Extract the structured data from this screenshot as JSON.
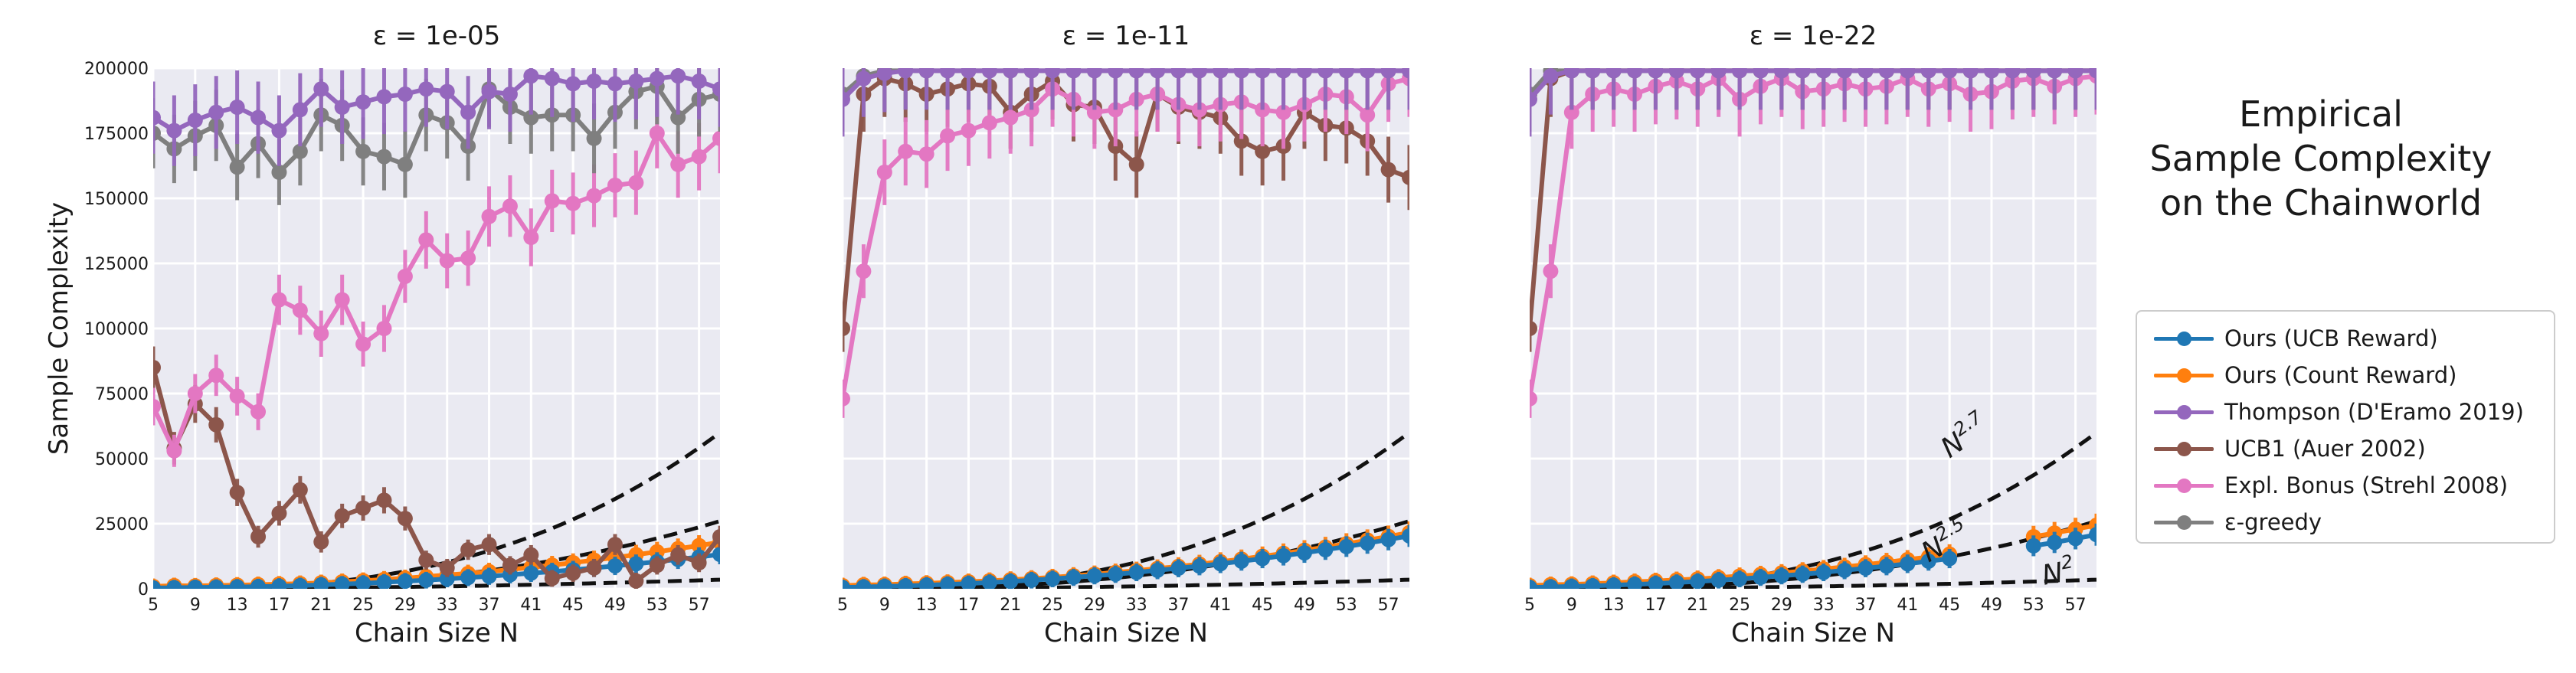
{
  "side_title": [
    "Empirical",
    "Sample Complexity",
    "on the Chainworld"
  ],
  "y_axis_label": "Sample Complexity",
  "legend": [
    {
      "label": "Ours (UCB Reward)",
      "color": "#1f77b4"
    },
    {
      "label": "Ours (Count Reward)",
      "color": "#ff7f0e"
    },
    {
      "label": "Thompson (D'Eramo 2019)",
      "color": "#9467bd"
    },
    {
      "label": "UCB1 (Auer 2002)",
      "color": "#8c564b"
    },
    {
      "label": "Expl. Bonus (Strehl 2008)",
      "color": "#e377c2"
    },
    {
      "label": "ε-greedy",
      "color": "#7f7f7f"
    }
  ],
  "chart_data": [
    {
      "type": "line",
      "title": "ε = 1e-05",
      "xlabel": "Chain Size N",
      "ylabel": "Sample Complexity",
      "x": [
        5,
        7,
        9,
        11,
        13,
        15,
        17,
        19,
        21,
        23,
        25,
        27,
        29,
        31,
        33,
        35,
        37,
        39,
        41,
        43,
        45,
        47,
        49,
        51,
        53,
        55,
        57,
        59
      ],
      "xticks": [
        "5",
        "9",
        "13",
        "17",
        "21",
        "25",
        "29",
        "33",
        "37",
        "41",
        "45",
        "49",
        "53",
        "57"
      ],
      "yticks": [
        "0",
        "25000",
        "50000",
        "75000",
        "100000",
        "125000",
        "150000",
        "175000",
        "200000"
      ],
      "xlim": [
        5,
        59
      ],
      "ylim": [
        0,
        200000
      ],
      "series": [
        {
          "name": "Ours (UCB Reward)",
          "color": "#1f77b4",
          "values": [
            300,
            400,
            500,
            600,
            700,
            800,
            1000,
            1200,
            1500,
            1800,
            2100,
            2500,
            2900,
            3300,
            3800,
            4300,
            4800,
            5400,
            6000,
            6600,
            7300,
            8000,
            8800,
            9600,
            10400,
            11300,
            12200,
            13200
          ]
        },
        {
          "name": "Ours (Count Reward)",
          "color": "#ff7f0e",
          "values": [
            900,
            1200,
            1100,
            1300,
            1400,
            1600,
            1800,
            2000,
            2300,
            2700,
            3100,
            3600,
            4100,
            4700,
            5300,
            5900,
            6600,
            7400,
            8200,
            9100,
            10000,
            11000,
            12000,
            13100,
            14200,
            15400,
            16600,
            17900
          ]
        },
        {
          "name": "Thompson (D'Eramo 2019)",
          "color": "#9467bd",
          "values": [
            181000,
            176000,
            180000,
            183000,
            185000,
            181000,
            176000,
            184000,
            192000,
            185000,
            187000,
            189000,
            190000,
            192000,
            191000,
            183000,
            191000,
            190000,
            197000,
            196000,
            194000,
            195000,
            194000,
            195000,
            196000,
            197000,
            195000,
            192000
          ]
        },
        {
          "name": "UCB1 (Auer 2002)",
          "color": "#8c564b",
          "values": [
            85000,
            54000,
            71000,
            63000,
            37000,
            20000,
            29000,
            38000,
            18000,
            28000,
            31000,
            34000,
            27000,
            11000,
            8000,
            15000,
            17000,
            9000,
            13000,
            4000,
            6000,
            8000,
            17000,
            3000,
            9000,
            13000,
            10000,
            20000
          ]
        },
        {
          "name": "Expl. Bonus (Strehl 2008)",
          "color": "#e377c2",
          "values": [
            70000,
            53000,
            75000,
            82000,
            74000,
            68000,
            111000,
            107000,
            98000,
            111000,
            94000,
            100000,
            120000,
            134000,
            126000,
            127000,
            143000,
            147000,
            135000,
            149000,
            148000,
            151000,
            155000,
            156000,
            175000,
            163000,
            166000,
            173000
          ]
        },
        {
          "name": "ε-greedy",
          "color": "#7f7f7f",
          "values": [
            175000,
            169000,
            174000,
            178000,
            162000,
            171000,
            160000,
            168000,
            182000,
            178000,
            168000,
            166000,
            163000,
            182000,
            179000,
            170000,
            192000,
            185000,
            181000,
            182000,
            182000,
            173000,
            183000,
            191000,
            193000,
            181000,
            188000,
            190000
          ]
        }
      ],
      "reference_curves": [
        {
          "label": "N^2.7",
          "exponent": 2.7,
          "scale": 60000
        },
        {
          "label": "N^2.5",
          "exponent": 2.5,
          "scale": 26000
        },
        {
          "label": "N^2",
          "exponent": 2,
          "scale": 3500
        }
      ],
      "annotations": []
    },
    {
      "type": "line",
      "title": "ε = 1e-11",
      "xlabel": "Chain Size N",
      "ylabel": "",
      "x": [
        5,
        7,
        9,
        11,
        13,
        15,
        17,
        19,
        21,
        23,
        25,
        27,
        29,
        31,
        33,
        35,
        37,
        39,
        41,
        43,
        45,
        47,
        49,
        51,
        53,
        55,
        57,
        59
      ],
      "xticks": [
        "5",
        "9",
        "13",
        "17",
        "21",
        "25",
        "29",
        "33",
        "37",
        "41",
        "45",
        "49",
        "53",
        "57"
      ],
      "yticks": [],
      "xlim": [
        5,
        59
      ],
      "ylim": [
        0,
        200000
      ],
      "series": [
        {
          "name": "Ours (UCB Reward)",
          "color": "#1f77b4",
          "values": [
            500,
            700,
            900,
            1100,
            1400,
            1700,
            2000,
            2400,
            2800,
            3300,
            3800,
            4400,
            5000,
            5600,
            6300,
            7100,
            7900,
            8700,
            9600,
            10600,
            11600,
            12700,
            13800,
            15000,
            16200,
            17500,
            18900,
            20300
          ]
        },
        {
          "name": "Ours (Count Reward)",
          "color": "#ff7f0e",
          "values": [
            1200,
            1500,
            1600,
            1900,
            2100,
            2400,
            2700,
            3100,
            3500,
            3900,
            4400,
            5000,
            5600,
            6300,
            7000,
            7800,
            8600,
            9500,
            10400,
            11400,
            12500,
            13600,
            14800,
            16000,
            17300,
            18700,
            20100,
            21600
          ]
        },
        {
          "name": "Thompson (D'Eramo 2019)",
          "color": "#9467bd",
          "values": [
            188000,
            196000,
            198000,
            199000,
            199000,
            199000,
            199000,
            199000,
            199000,
            199000,
            199000,
            199000,
            199000,
            199000,
            199000,
            199000,
            199000,
            199000,
            199000,
            199000,
            199000,
            199000,
            199000,
            199000,
            199000,
            199000,
            199000,
            199000
          ]
        },
        {
          "name": "UCB1 (Auer 2002)",
          "color": "#8c564b",
          "values": [
            100000,
            190000,
            196000,
            194000,
            190000,
            192000,
            194000,
            193000,
            183000,
            190000,
            195000,
            186000,
            185000,
            170000,
            163000,
            190000,
            185000,
            183000,
            181000,
            172000,
            168000,
            170000,
            183000,
            178000,
            177000,
            172000,
            161000,
            158000
          ]
        },
        {
          "name": "Expl. Bonus (Strehl 2008)",
          "color": "#e377c2",
          "values": [
            73000,
            122000,
            160000,
            168000,
            167000,
            174000,
            176000,
            179000,
            181000,
            184000,
            192000,
            188000,
            183000,
            184000,
            188000,
            190000,
            186000,
            184000,
            186000,
            187000,
            184000,
            183000,
            186000,
            190000,
            189000,
            182000,
            194000,
            196000
          ]
        },
        {
          "name": "ε-greedy",
          "color": "#7f7f7f",
          "values": [
            190000,
            197000,
            199000,
            199000,
            199000,
            199000,
            199000,
            199000,
            199000,
            199000,
            199000,
            199000,
            199000,
            199000,
            199000,
            199000,
            199000,
            199000,
            199000,
            199000,
            199000,
            199000,
            199000,
            199000,
            199000,
            199000,
            199000,
            199000
          ]
        }
      ],
      "reference_curves": [
        {
          "label": "N^2.7",
          "exponent": 2.7,
          "scale": 60000
        },
        {
          "label": "N^2.5",
          "exponent": 2.5,
          "scale": 26000
        },
        {
          "label": "N^2",
          "exponent": 2,
          "scale": 3500
        }
      ],
      "annotations": []
    },
    {
      "type": "line",
      "title": "ε = 1e-22",
      "xlabel": "Chain Size N",
      "ylabel": "",
      "x": [
        5,
        7,
        9,
        11,
        13,
        15,
        17,
        19,
        21,
        23,
        25,
        27,
        29,
        31,
        33,
        35,
        37,
        39,
        41,
        43,
        45,
        47,
        49,
        51,
        53,
        55,
        57,
        59
      ],
      "xticks": [
        "5",
        "9",
        "13",
        "17",
        "21",
        "25",
        "29",
        "33",
        "37",
        "41",
        "45",
        "49",
        "53",
        "57"
      ],
      "yticks": [],
      "xlim": [
        5,
        59
      ],
      "ylim": [
        0,
        200000
      ],
      "series": [
        {
          "name": "Ours (UCB Reward)",
          "color": "#1f77b4",
          "values": [
            500,
            700,
            900,
            1100,
            1400,
            1700,
            2000,
            2400,
            2800,
            3300,
            3800,
            4400,
            5000,
            5600,
            6300,
            7100,
            7900,
            8700,
            9600,
            10600,
            11600,
            null,
            null,
            null,
            16500,
            17800,
            19300,
            20800
          ]
        },
        {
          "name": "Ours (Count Reward)",
          "color": "#ff7f0e",
          "values": [
            1200,
            1600,
            1700,
            2000,
            2300,
            2700,
            3000,
            3400,
            3800,
            4300,
            4900,
            5500,
            6100,
            6800,
            7600,
            8400,
            9300,
            10200,
            11200,
            12200,
            13300,
            null,
            null,
            null,
            20000,
            21400,
            22900,
            24400
          ]
        },
        {
          "name": "Thompson (D'Eramo 2019)",
          "color": "#9467bd",
          "values": [
            188000,
            197000,
            199000,
            199000,
            199000,
            199000,
            199000,
            199000,
            199000,
            199000,
            199000,
            199000,
            199000,
            199000,
            199000,
            199000,
            199000,
            199000,
            199000,
            199000,
            199000,
            199000,
            199000,
            199000,
            199000,
            199000,
            199000,
            199000
          ]
        },
        {
          "name": "UCB1 (Auer 2002)",
          "color": "#8c564b",
          "values": [
            100000,
            196000,
            199000,
            199000,
            199000,
            199000,
            199000,
            199000,
            199000,
            199000,
            199000,
            199000,
            199000,
            199000,
            199000,
            199000,
            199000,
            199000,
            199000,
            199000,
            199000,
            199000,
            199000,
            199000,
            199000,
            199000,
            199000,
            199000
          ]
        },
        {
          "name": "Expl. Bonus (Strehl 2008)",
          "color": "#e377c2",
          "values": [
            73000,
            122000,
            183000,
            190000,
            192000,
            190000,
            193000,
            195000,
            192000,
            196000,
            188000,
            193000,
            196000,
            191000,
            192000,
            194000,
            192000,
            193000,
            196000,
            192000,
            194000,
            190000,
            191000,
            195000,
            196000,
            193000,
            196000,
            197000
          ]
        },
        {
          "name": "ε-greedy",
          "color": "#7f7f7f",
          "values": [
            190000,
            199000,
            199000,
            199000,
            199000,
            199000,
            199000,
            199000,
            199000,
            199000,
            199000,
            199000,
            199000,
            199000,
            199000,
            199000,
            199000,
            199000,
            199000,
            199000,
            199000,
            199000,
            199000,
            199000,
            199000,
            199000,
            199000,
            199000
          ]
        }
      ],
      "reference_curves": [
        {
          "label": "N^2.7",
          "exponent": 2.7,
          "scale": 60000
        },
        {
          "label": "N^2.5",
          "exponent": 2.5,
          "scale": 26000
        },
        {
          "label": "N^2",
          "exponent": 2,
          "scale": 3500
        }
      ],
      "annotations": [
        {
          "base": "N",
          "exp": "2.7",
          "at_n": 45,
          "at_y": 50000,
          "rotate": -35
        },
        {
          "base": "N",
          "exp": "2.5",
          "at_n": 43,
          "at_y": 10000,
          "rotate": -30
        },
        {
          "base": "N",
          "exp": "2",
          "at_n": 54,
          "at_y": 1500,
          "rotate": -10
        }
      ]
    }
  ]
}
